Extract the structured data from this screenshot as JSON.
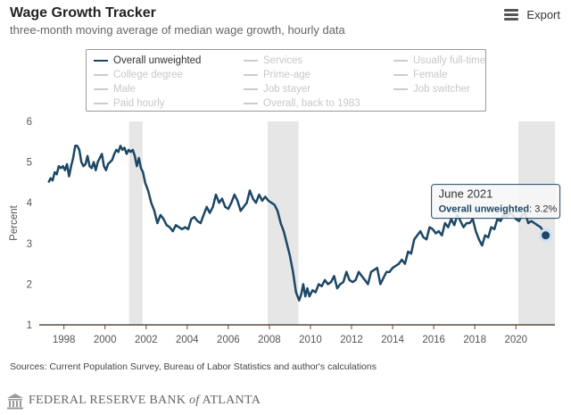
{
  "header": {
    "title": "Wage Growth Tracker",
    "subtitle": "three-month moving average of median wage growth, hourly data",
    "export_label": "Export",
    "export_icon": "menu-icon"
  },
  "legend": {
    "items": [
      {
        "label": "Overall unweighted",
        "active": true
      },
      {
        "label": "Services",
        "active": false
      },
      {
        "label": "Usually full-time",
        "active": false
      },
      {
        "label": "College degree",
        "active": false
      },
      {
        "label": "Prime-age",
        "active": false
      },
      {
        "label": "Female",
        "active": false
      },
      {
        "label": "Male",
        "active": false
      },
      {
        "label": "Job stayer",
        "active": false
      },
      {
        "label": "Job switcher",
        "active": false
      },
      {
        "label": "Paid hourly",
        "active": false
      },
      {
        "label": "Overall, back to 1983",
        "active": false
      }
    ]
  },
  "tooltip": {
    "date": "June 2021",
    "series": "Overall unweighted",
    "value": "3.2%"
  },
  "source": "Sources: Current Population Survey, Bureau of Labor Statistics and author's calculations",
  "footer": {
    "bank_name_a": "FEDERAL RESERVE BANK ",
    "bank_name_of": "of",
    "bank_name_b": " ATLANTA"
  },
  "chart_data": {
    "type": "line",
    "title": "Wage Growth Tracker",
    "subtitle": "three-month moving average of median wage growth, hourly data",
    "xlabel": "",
    "ylabel": "Percent",
    "xlim": [
      1996.8,
      2021.9
    ],
    "ylim": [
      1,
      6
    ],
    "yticks": [
      1,
      2,
      3,
      4,
      5,
      6
    ],
    "xticks": [
      1998,
      2000,
      2002,
      2004,
      2006,
      2008,
      2010,
      2012,
      2014,
      2016,
      2018,
      2020
    ],
    "grid": false,
    "legend_position": "top",
    "colors": {
      "series": "#1c4766",
      "recession": "#e6e6e6",
      "axis": "#5b4a3f"
    },
    "recessions": [
      [
        2001.17,
        2001.83
      ],
      [
        2007.92,
        2009.42
      ],
      [
        2020.12,
        2021.9
      ]
    ],
    "series": [
      {
        "name": "Overall unweighted",
        "x": [
          1997.25,
          1997.35,
          1997.45,
          1997.55,
          1997.65,
          1997.75,
          1997.85,
          1997.95,
          1998.05,
          1998.15,
          1998.25,
          1998.35,
          1998.45,
          1998.55,
          1998.65,
          1998.75,
          1998.85,
          1998.95,
          1999.05,
          1999.15,
          1999.25,
          1999.35,
          1999.45,
          1999.55,
          1999.65,
          1999.75,
          1999.85,
          1999.95,
          2000.05,
          2000.15,
          2000.25,
          2000.35,
          2000.45,
          2000.55,
          2000.65,
          2000.75,
          2000.85,
          2000.95,
          2001.05,
          2001.15,
          2001.25,
          2001.35,
          2001.45,
          2001.55,
          2001.65,
          2001.75,
          2001.85,
          2001.95,
          2002.1,
          2002.25,
          2002.4,
          2002.55,
          2002.7,
          2002.85,
          2003.0,
          2003.15,
          2003.3,
          2003.45,
          2003.6,
          2003.75,
          2003.9,
          2004.05,
          2004.2,
          2004.35,
          2004.5,
          2004.65,
          2004.8,
          2004.95,
          2005.1,
          2005.25,
          2005.4,
          2005.55,
          2005.7,
          2005.85,
          2006.0,
          2006.15,
          2006.3,
          2006.45,
          2006.6,
          2006.75,
          2006.9,
          2007.05,
          2007.2,
          2007.35,
          2007.5,
          2007.65,
          2007.8,
          2007.95,
          2008.1,
          2008.25,
          2008.4,
          2008.55,
          2008.7,
          2008.85,
          2009.0,
          2009.15,
          2009.3,
          2009.45,
          2009.55,
          2009.65,
          2009.75,
          2009.85,
          2009.95,
          2010.1,
          2010.25,
          2010.4,
          2010.55,
          2010.7,
          2010.85,
          2011.0,
          2011.15,
          2011.3,
          2011.45,
          2011.6,
          2011.75,
          2011.9,
          2012.05,
          2012.2,
          2012.35,
          2012.5,
          2012.65,
          2012.8,
          2012.95,
          2013.1,
          2013.25,
          2013.4,
          2013.55,
          2013.7,
          2013.85,
          2014.0,
          2014.15,
          2014.3,
          2014.45,
          2014.6,
          2014.75,
          2014.9,
          2015.05,
          2015.2,
          2015.35,
          2015.5,
          2015.65,
          2015.8,
          2015.95,
          2016.1,
          2016.25,
          2016.4,
          2016.55,
          2016.7,
          2016.85,
          2017.0,
          2017.15,
          2017.3,
          2017.45,
          2017.6,
          2017.75,
          2017.9,
          2018.05,
          2018.2,
          2018.35,
          2018.5,
          2018.65,
          2018.8,
          2018.95,
          2019.1,
          2019.25,
          2019.4,
          2019.55,
          2019.7,
          2019.85,
          2020.0,
          2020.15,
          2020.3,
          2020.45,
          2020.6,
          2020.75,
          2020.9,
          2021.05,
          2021.2,
          2021.35,
          2021.45
        ],
        "values": [
          4.5,
          4.6,
          4.55,
          4.75,
          4.7,
          4.9,
          4.85,
          4.9,
          4.8,
          4.95,
          4.65,
          4.9,
          5.1,
          5.4,
          5.4,
          5.3,
          5.0,
          4.9,
          4.95,
          5.15,
          4.9,
          4.85,
          5.0,
          4.8,
          5.0,
          5.1,
          5.2,
          4.9,
          4.8,
          4.95,
          5.0,
          5.05,
          5.2,
          5.3,
          5.25,
          5.4,
          5.3,
          5.35,
          5.2,
          5.3,
          5.25,
          5.3,
          5.15,
          4.9,
          5.1,
          4.85,
          4.75,
          4.5,
          4.3,
          4.0,
          3.8,
          3.5,
          3.7,
          3.6,
          3.45,
          3.4,
          3.3,
          3.45,
          3.4,
          3.35,
          3.4,
          3.35,
          3.6,
          3.65,
          3.55,
          3.5,
          3.7,
          3.9,
          3.75,
          3.9,
          4.2,
          4.0,
          4.1,
          3.9,
          3.85,
          4.0,
          4.2,
          4.05,
          3.8,
          3.9,
          4.0,
          4.3,
          4.1,
          4.0,
          4.2,
          4.05,
          4.15,
          4.05,
          4.0,
          3.95,
          3.8,
          3.5,
          3.3,
          3.0,
          2.7,
          2.3,
          1.8,
          1.6,
          1.75,
          2.0,
          1.7,
          1.9,
          1.7,
          1.85,
          1.8,
          2.0,
          1.95,
          2.1,
          2.0,
          2.05,
          2.2,
          1.9,
          2.0,
          2.05,
          2.3,
          2.1,
          2.05,
          2.1,
          2.3,
          2.2,
          2.1,
          2.0,
          2.3,
          2.35,
          2.4,
          2.0,
          2.15,
          2.3,
          2.3,
          2.4,
          2.45,
          2.5,
          2.6,
          2.5,
          2.8,
          2.75,
          3.1,
          3.2,
          3.3,
          3.15,
          3.1,
          3.4,
          3.35,
          3.25,
          3.3,
          3.2,
          3.5,
          3.4,
          3.6,
          3.45,
          3.7,
          3.55,
          3.4,
          3.5,
          3.5,
          3.6,
          3.3,
          3.1,
          2.95,
          3.2,
          3.15,
          3.4,
          3.35,
          3.6,
          3.55,
          3.7,
          3.65,
          3.75,
          3.7,
          3.6,
          3.55,
          3.7,
          3.75,
          3.5,
          3.55,
          3.5,
          3.45,
          3.4,
          3.3,
          3.2
        ]
      }
    ]
  }
}
